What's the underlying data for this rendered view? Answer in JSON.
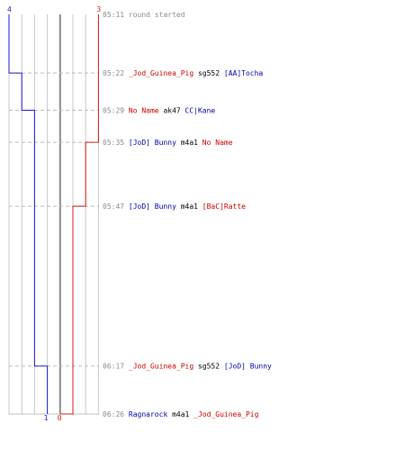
{
  "chart_data": {
    "type": "line",
    "x_axis": "time",
    "ylim": [
      0,
      4
    ],
    "series": [
      {
        "color": "#1a1ad6",
        "start_count": "4",
        "end_count": "1",
        "steps": [
          {
            "time": "05:11",
            "value": 4
          },
          {
            "time": "05:22",
            "value": 3
          },
          {
            "time": "05:29",
            "value": 2
          },
          {
            "time": "06:17",
            "value": 1
          },
          {
            "time": "06:26",
            "value": 1
          }
        ]
      },
      {
        "color": "#d61a1a",
        "start_count": "3",
        "end_count": "0",
        "steps": [
          {
            "time": "05:11",
            "value": 3
          },
          {
            "time": "05:35",
            "value": 2
          },
          {
            "time": "05:47",
            "value": 1
          },
          {
            "time": "06:26",
            "value": 0
          }
        ]
      }
    ]
  },
  "events": [
    {
      "time": "05:11",
      "minutes": 311,
      "system": "round started"
    },
    {
      "time": "05:22",
      "minutes": 322,
      "killer": "_Jod_Guinea_Pig",
      "killer_team": "red",
      "weapon": "sg552",
      "victim": "[AA]Tocha",
      "victim_team": "blue"
    },
    {
      "time": "05:29",
      "minutes": 329,
      "killer": "No Name",
      "killer_team": "red",
      "weapon": "ak47",
      "victim": "CC|Kane",
      "victim_team": "blue"
    },
    {
      "time": "05:35",
      "minutes": 335,
      "killer": "[JoD] Bunny",
      "killer_team": "blue",
      "weapon": "m4a1",
      "victim": "No Name",
      "victim_team": "red"
    },
    {
      "time": "05:47",
      "minutes": 347,
      "killer": "[JoD] Bunny",
      "killer_team": "blue",
      "weapon": "m4a1",
      "victim": "[BaC]Ratte",
      "victim_team": "red"
    },
    {
      "time": "06:17",
      "minutes": 377,
      "killer": "_Jod_Guinea_Pig",
      "killer_team": "red",
      "weapon": "sg552",
      "victim": "[JoD] Bunny",
      "victim_team": "blue"
    },
    {
      "time": "06:26",
      "minutes": 386,
      "killer": "Ragnarock",
      "killer_team": "blue",
      "weapon": "m4a1",
      "victim": "_Jod_Guinea_Pig",
      "victim_team": "red"
    }
  ],
  "colors": {
    "red_team": "#cc0000",
    "blue_team": "#0000aa",
    "grid": "#c8c8c8",
    "center_line": "#8a8a8a",
    "dash": "#bbbbbb",
    "time_text": "#8a8a8a"
  }
}
